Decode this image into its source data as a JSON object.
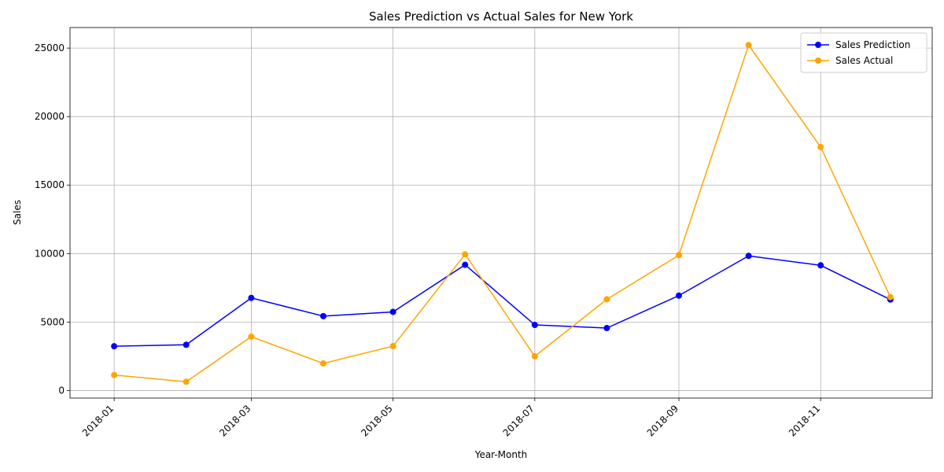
{
  "chart_data": {
    "type": "line",
    "title": "Sales Prediction vs Actual Sales for New York",
    "xlabel": "Year-Month",
    "ylabel": "Sales",
    "x": [
      "2018-01",
      "2018-02",
      "2018-03",
      "2018-04",
      "2018-05",
      "2018-06",
      "2018-07",
      "2018-08",
      "2018-09",
      "2018-10",
      "2018-11",
      "2018-12"
    ],
    "x_ticks": [
      "2018-01",
      "2018-03",
      "2018-05",
      "2018-07",
      "2018-09",
      "2018-11"
    ],
    "y_ticks": [
      0,
      5000,
      10000,
      15000,
      20000,
      25000
    ],
    "ylim": [
      -550,
      26500
    ],
    "xlim": [
      "2017-12-13",
      "2018-12-19"
    ],
    "grid": true,
    "legend_position": "top-right",
    "series": [
      {
        "name": "Sales Prediction",
        "color": "#0000ff",
        "marker": "circle",
        "values": [
          3230,
          3340,
          6760,
          5430,
          5740,
          9180,
          4790,
          4560,
          6930,
          9830,
          9140,
          6640
        ]
      },
      {
        "name": "Sales Actual",
        "color": "#ffa500",
        "marker": "circle",
        "values": [
          1130,
          640,
          3930,
          1980,
          3240,
          9940,
          2500,
          6660,
          9880,
          25220,
          17780,
          6820
        ]
      }
    ]
  }
}
